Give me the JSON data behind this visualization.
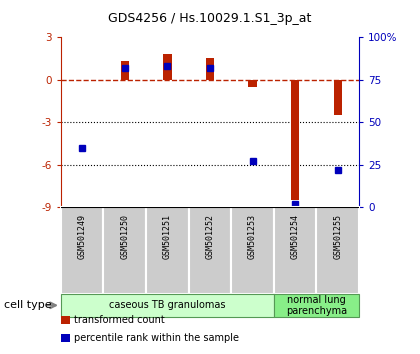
{
  "title": "GDS4256 / Hs.10029.1.S1_3p_at",
  "samples": [
    "GSM501249",
    "GSM501250",
    "GSM501251",
    "GSM501252",
    "GSM501253",
    "GSM501254",
    "GSM501255"
  ],
  "transformed_count": [
    0.0,
    1.3,
    1.8,
    1.5,
    -0.5,
    -8.5,
    -2.5
  ],
  "percentile_rank": [
    35,
    82,
    83,
    82,
    27,
    2,
    22
  ],
  "ylim_left": [
    -9,
    3
  ],
  "ylim_right": [
    0,
    100
  ],
  "yticks_left": [
    -9,
    -6,
    -3,
    0,
    3
  ],
  "yticks_right": [
    0,
    25,
    50,
    75,
    100
  ],
  "yticklabels_right": [
    "0",
    "25",
    "50",
    "75",
    "100%"
  ],
  "bar_color": "#bb2200",
  "dot_color": "#0000bb",
  "cell_groups": [
    {
      "label": "caseous TB granulomas",
      "samples": [
        0,
        1,
        2,
        3,
        4
      ],
      "color": "#ccffcc"
    },
    {
      "label": "normal lung\nparenchyma",
      "samples": [
        5,
        6
      ],
      "color": "#88ee88"
    }
  ],
  "legend_items": [
    {
      "color": "#bb2200",
      "label": "transformed count"
    },
    {
      "color": "#0000bb",
      "label": "percentile rank within the sample"
    }
  ],
  "cell_type_label": "cell type"
}
